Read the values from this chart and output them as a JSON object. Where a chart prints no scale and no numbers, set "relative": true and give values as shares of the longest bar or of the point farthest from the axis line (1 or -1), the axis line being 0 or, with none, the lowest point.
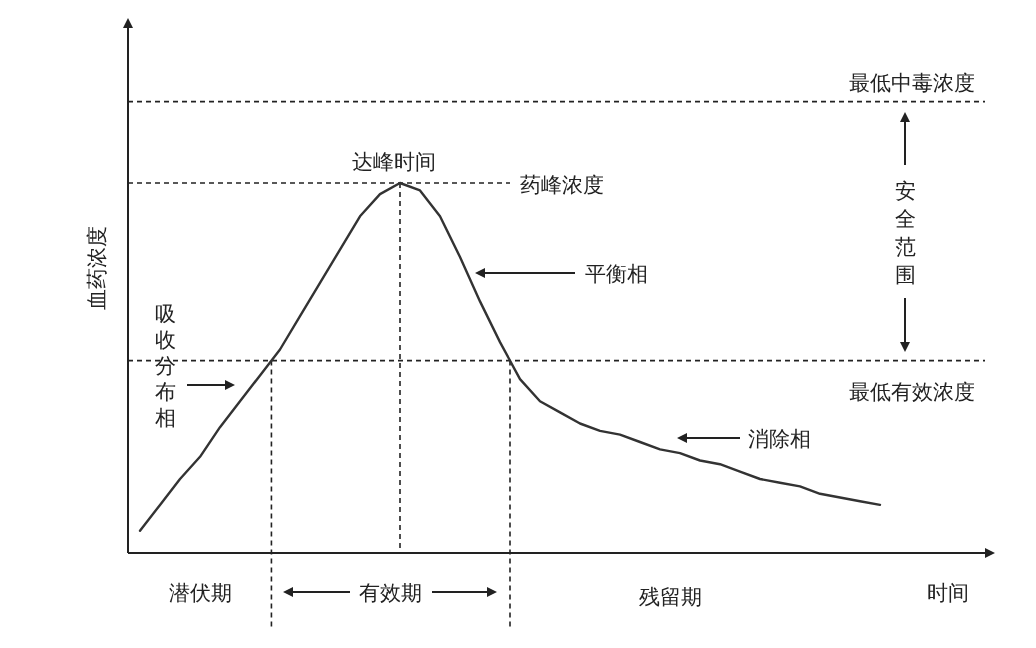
{
  "chart_data": {
    "type": "line",
    "relative": true,
    "xlabel": "时间",
    "ylabel": "血药浓度",
    "color": "#333333",
    "categories": [
      null,
      null,
      null,
      null,
      null,
      null,
      null,
      null,
      null,
      null,
      null,
      null,
      null,
      null,
      null,
      null,
      null,
      null,
      null,
      null,
      null,
      null,
      null,
      null,
      null,
      null,
      null,
      null,
      null,
      null,
      null,
      null,
      null,
      null,
      null,
      null,
      null,
      null
    ],
    "values": [
      0.06,
      0.13,
      0.2,
      0.26,
      0.34,
      0.41,
      0.48,
      0.55,
      0.64,
      0.73,
      0.82,
      0.91,
      0.97,
      1.0,
      0.98,
      0.91,
      0.8,
      0.68,
      0.57,
      0.47,
      0.41,
      0.38,
      0.35,
      0.33,
      0.32,
      0.3,
      0.28,
      0.27,
      0.25,
      0.24,
      0.22,
      0.2,
      0.19,
      0.18,
      0.16,
      0.15,
      0.14,
      0.13
    ],
    "ref_lines": [
      {
        "axis": "y",
        "value": 1.22,
        "label": "最低中毒浓度",
        "line_style": "dashed"
      },
      {
        "axis": "y",
        "value": 1.0,
        "label": "药峰浓度",
        "line_style": "dashed"
      },
      {
        "axis": "y",
        "value": 0.52,
        "label": "最低有效浓度",
        "line_style": "dashed"
      }
    ],
    "annotations": [
      "达峰时间",
      "平衡相",
      "吸收分布相",
      "消除相",
      "安全范围",
      "潜伏期",
      "有效期",
      "残留期"
    ]
  }
}
